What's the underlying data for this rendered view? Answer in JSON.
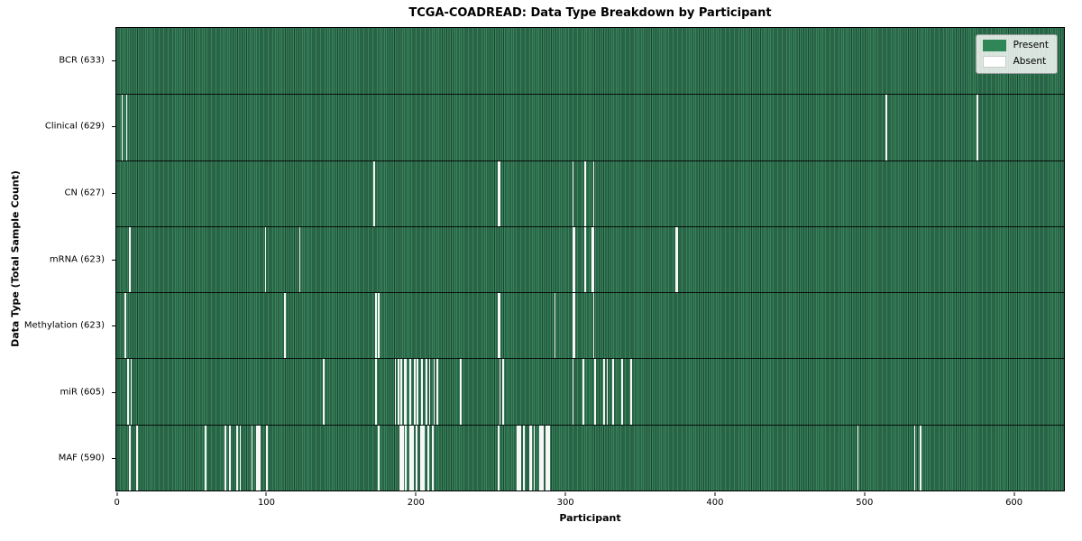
{
  "colors": {
    "present": "#2f8757",
    "present_stripe_dark": "#1b4531",
    "absent": "#f7f7f7",
    "plot_border": "#000000",
    "background": "#ffffff"
  },
  "chart_data": {
    "type": "heatmap",
    "title": "TCGA-COADREAD: Data Type Breakdown by Participant",
    "xlabel": "Participant",
    "ylabel": "Data Type (Total Sample Count)",
    "x_ticks": [
      0,
      100,
      200,
      300,
      400,
      500,
      600
    ],
    "x_range": [
      -1,
      634
    ],
    "n_participants": 633,
    "grid": false,
    "legend_position": "upper right",
    "legend": [
      {
        "label": "Present",
        "color": "#2f8757"
      },
      {
        "label": "Absent",
        "color": "#ffffff"
      }
    ],
    "rows": [
      {
        "label": "BCR (633)",
        "data_type": "BCR",
        "present_count": 633,
        "absent_participants": []
      },
      {
        "label": "Clinical (629)",
        "data_type": "Clinical",
        "present_count": 629,
        "absent_participants": [
          3,
          6,
          515,
          576
        ]
      },
      {
        "label": "CN (627)",
        "data_type": "CN",
        "present_count": 627,
        "absent_participants": [
          172,
          255,
          256,
          305,
          313,
          319
        ]
      },
      {
        "label": "mRNA (623)",
        "data_type": "mRNA",
        "present_count": 623,
        "absent_participants": [
          8,
          99,
          122,
          305,
          306,
          313,
          318,
          319,
          374,
          375
        ]
      },
      {
        "label": "Methylation (623)",
        "data_type": "Methylation",
        "present_count": 623,
        "absent_participants": [
          5,
          112,
          173,
          175,
          255,
          256,
          293,
          305,
          306,
          319
        ]
      },
      {
        "label": "miR (605)",
        "data_type": "miR",
        "present_count": 605,
        "absent_participants": [
          7,
          9,
          138,
          173,
          186,
          188,
          190,
          192,
          193,
          196,
          199,
          201,
          204,
          207,
          209,
          212,
          214,
          230,
          256,
          258,
          305,
          312,
          320,
          326,
          328,
          332,
          338,
          344
        ]
      },
      {
        "label": "MAF (590)",
        "data_type": "MAF",
        "present_count": 590,
        "absent_participants": [
          8,
          13,
          59,
          72,
          75,
          80,
          82,
          90,
          93,
          94,
          95,
          100,
          175,
          189,
          190,
          191,
          193,
          196,
          197,
          198,
          200,
          203,
          204,
          205,
          208,
          211,
          255,
          268,
          269,
          270,
          272,
          276,
          277,
          279,
          283,
          284,
          285,
          287,
          288,
          289,
          496,
          534,
          538
        ]
      }
    ]
  }
}
